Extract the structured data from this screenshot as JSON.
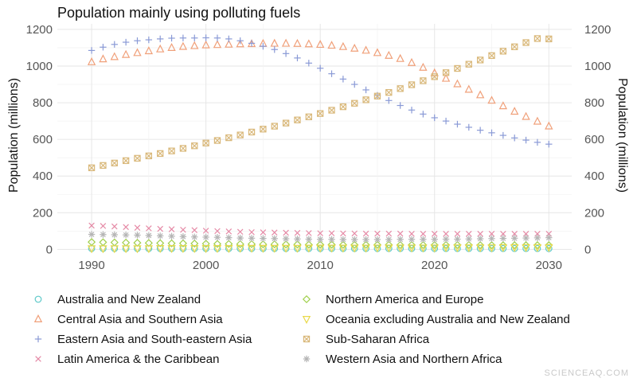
{
  "chart_data": {
    "type": "scatter",
    "title": "Population mainly using polluting fuels",
    "xlabel": "",
    "ylabel": "Population (millions)",
    "ylabel_right": "Population (millions)",
    "xlim": [
      1987,
      2032
    ],
    "ylim": [
      -20,
      1230
    ],
    "x_ticks": [
      1990,
      2000,
      2010,
      2020,
      2030
    ],
    "y_ticks": [
      0,
      200,
      400,
      600,
      800,
      1000,
      1200
    ],
    "grid": true,
    "legend_position": "bottom",
    "x": [
      1990,
      1991,
      1992,
      1993,
      1994,
      1995,
      1996,
      1997,
      1998,
      1999,
      2000,
      2001,
      2002,
      2003,
      2004,
      2005,
      2006,
      2007,
      2008,
      2009,
      2010,
      2011,
      2012,
      2013,
      2014,
      2015,
      2016,
      2017,
      2018,
      2019,
      2020,
      2021,
      2022,
      2023,
      2024,
      2025,
      2026,
      2027,
      2028,
      2029,
      2030
    ],
    "series": [
      {
        "name": "Australia and New Zealand",
        "marker": "circle",
        "color": "#5ec9c9",
        "values": [
          5,
          5,
          5,
          5,
          5,
          5,
          5,
          5,
          5,
          5,
          5,
          5,
          5,
          5,
          5,
          5,
          5,
          5,
          5,
          5,
          5,
          5,
          5,
          5,
          5,
          5,
          5,
          5,
          5,
          5,
          5,
          5,
          5,
          5,
          5,
          5,
          5,
          5,
          5,
          5,
          5
        ]
      },
      {
        "name": "Central Asia and Southern Asia",
        "marker": "triangle-up",
        "color": "#f0a07a",
        "values": [
          1022,
          1038,
          1050,
          1062,
          1072,
          1082,
          1092,
          1100,
          1106,
          1110,
          1114,
          1116,
          1118,
          1120,
          1121,
          1122,
          1123,
          1123,
          1122,
          1120,
          1117,
          1112,
          1105,
          1096,
          1085,
          1072,
          1057,
          1040,
          1018,
          992,
          962,
          932,
          902,
          872,
          842,
          812,
          782,
          752,
          724,
          698,
          672
        ]
      },
      {
        "name": "Eastern Asia and South-eastern Asia",
        "marker": "plus",
        "color": "#8a9ad6",
        "values": [
          1085,
          1103,
          1118,
          1130,
          1138,
          1143,
          1148,
          1152,
          1153,
          1153,
          1154,
          1153,
          1148,
          1138,
          1124,
          1108,
          1090,
          1068,
          1044,
          1016,
          988,
          958,
          929,
          900,
          870,
          840,
          812,
          785,
          760,
          738,
          718,
          700,
          683,
          666,
          650,
          636,
          622,
          608,
          596,
          584,
          574
        ]
      },
      {
        "name": "Latin America & the Caribbean",
        "marker": "x",
        "color": "#e58aa6",
        "values": [
          130,
          128,
          125,
          122,
          118,
          115,
          112,
          110,
          107,
          105,
          102,
          100,
          98,
          96,
          94,
          93,
          92,
          91,
          90,
          89,
          88,
          88,
          87,
          87,
          86,
          86,
          86,
          86,
          85,
          85,
          85,
          85,
          85,
          85,
          85,
          85,
          85,
          85,
          85,
          85,
          85
        ]
      },
      {
        "name": "Northern America and Europe",
        "marker": "diamond",
        "color": "#9fcf4a",
        "values": [
          40,
          39,
          38,
          37,
          36,
          35,
          34,
          33,
          33,
          32,
          31,
          30,
          30,
          29,
          29,
          28,
          28,
          27,
          27,
          26,
          26,
          26,
          25,
          25,
          25,
          25,
          25,
          24,
          24,
          24,
          24,
          24,
          24,
          24,
          23,
          23,
          23,
          23,
          23,
          23,
          23
        ]
      },
      {
        "name": "Oceania excluding Australia and New Zealand",
        "marker": "triangle-down",
        "color": "#e9d94a",
        "values": [
          5,
          5,
          5,
          5,
          5,
          5,
          6,
          6,
          6,
          6,
          6,
          6,
          6,
          7,
          7,
          7,
          7,
          7,
          7,
          8,
          8,
          8,
          8,
          8,
          8,
          9,
          9,
          9,
          9,
          9,
          9,
          10,
          10,
          10,
          10,
          10,
          11,
          11,
          11,
          11,
          11
        ]
      },
      {
        "name": "Sub-Saharan Africa",
        "marker": "square-x",
        "color": "#d9b87a",
        "values": [
          445,
          458,
          471,
          484,
          497,
          510,
          523,
          537,
          551,
          565,
          580,
          594,
          609,
          624,
          640,
          656,
          672,
          689,
          706,
          723,
          741,
          759,
          778,
          797,
          816,
          836,
          856,
          877,
          898,
          920,
          942,
          964,
          987,
          1010,
          1033,
          1057,
          1081,
          1105,
          1128,
          1150,
          1148
        ]
      },
      {
        "name": "Western Asia and Northern Africa",
        "marker": "asterisk",
        "color": "#b5b5b5",
        "values": [
          82,
          81,
          80,
          79,
          78,
          76,
          74,
          72,
          70,
          68,
          67,
          66,
          64,
          62,
          61,
          60,
          59,
          58,
          57,
          56,
          55,
          55,
          54,
          54,
          54,
          54,
          54,
          55,
          55,
          55,
          55,
          56,
          56,
          57,
          58,
          59,
          60,
          61,
          62,
          63,
          64
        ]
      }
    ]
  },
  "watermark": "SCIENCEAQ.COM"
}
